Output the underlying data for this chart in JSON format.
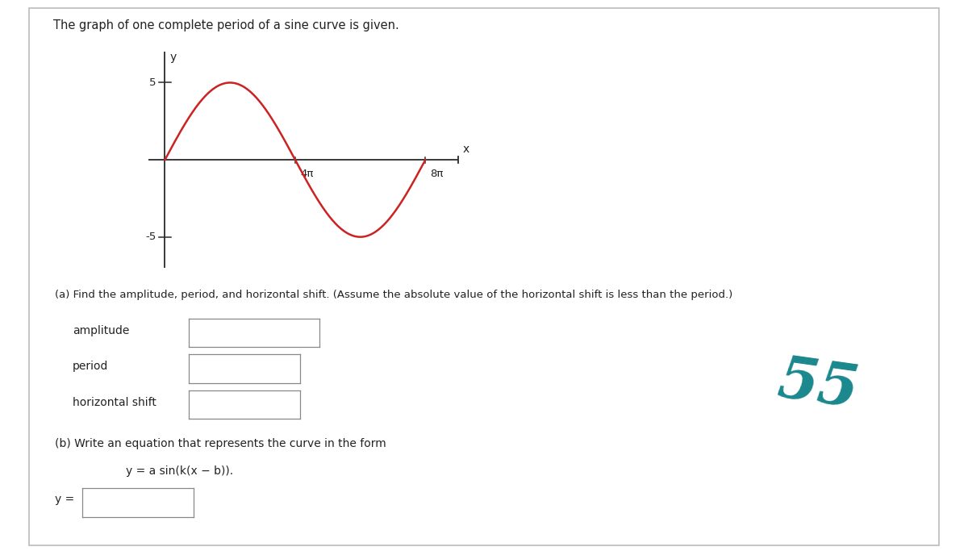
{
  "title_text": "The graph of one complete period of a sine curve is given.",
  "graph_title_y": "y",
  "graph_title_x": "x",
  "amplitude": 5,
  "x_tick_labels": [
    "4π",
    "8π"
  ],
  "x_tick_vals": [
    4,
    8
  ],
  "y_tick_labels": [
    "5",
    "-5"
  ],
  "y_tick_vals": [
    5,
    -5
  ],
  "curve_color": "#cc2222",
  "axis_color": "#2a2a2a",
  "bg_color": "#ffffff",
  "text_color": "#222222",
  "part_a_text": "(a) Find the amplitude, period, and horizontal shift. (Assume the absolute value of the horizontal shift is less than the period.)",
  "label_amplitude": "amplitude",
  "label_period": "period",
  "label_horiz_shift": "horizontal shift",
  "part_b_text": "(b) Write an equation that represents the curve in the form",
  "part_b_eq": "y = a sin(k(x − b)).",
  "label_y_eq": "y =",
  "score_color": "#007b80"
}
